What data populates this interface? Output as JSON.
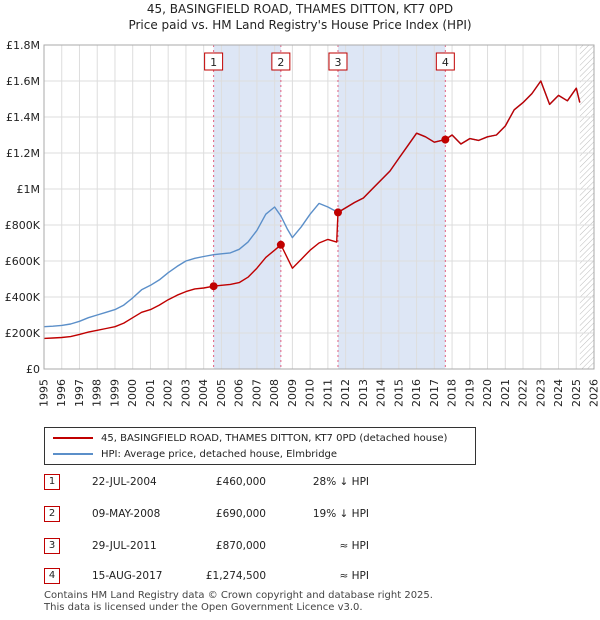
{
  "chart_data": {
    "type": "line",
    "title": "45, BASINGFIELD ROAD, THAMES DITTON, KT7 0PD",
    "subtitle": "Price paid vs. HM Land Registry's House Price Index (HPI)",
    "xlim": [
      1995,
      2026
    ],
    "ylim": [
      0,
      1800000
    ],
    "x_ticks": [
      "1995",
      "1996",
      "1997",
      "1998",
      "1999",
      "2000",
      "2001",
      "2002",
      "2003",
      "2004",
      "2005",
      "2006",
      "2007",
      "2008",
      "2009",
      "2010",
      "2011",
      "2012",
      "2013",
      "2014",
      "2015",
      "2016",
      "2017",
      "2018",
      "2019",
      "2020",
      "2021",
      "2022",
      "2023",
      "2024",
      "2025",
      "2026"
    ],
    "y_ticks": [
      {
        "value": 0,
        "label": "£0"
      },
      {
        "value": 200000,
        "label": "£200K"
      },
      {
        "value": 400000,
        "label": "£400K"
      },
      {
        "value": 600000,
        "label": "£600K"
      },
      {
        "value": 800000,
        "label": "£800K"
      },
      {
        "value": 1000000,
        "label": "£1M"
      },
      {
        "value": 1200000,
        "label": "£1.2M"
      },
      {
        "value": 1400000,
        "label": "£1.4M"
      },
      {
        "value": 1600000,
        "label": "£1.6M"
      },
      {
        "value": 1800000,
        "label": "£1.8M"
      }
    ],
    "grid": true,
    "colors": {
      "property": "#c00000",
      "hpi": "#5b8fc9",
      "shade": "#dde6f5",
      "sale_line": "#e06080"
    },
    "series": [
      {
        "name": "45, BASINGFIELD ROAD, THAMES DITTON, KT7 0PD (detached house)",
        "color": "#c00000",
        "points": [
          [
            1995.0,
            170000
          ],
          [
            1995.5,
            172000
          ],
          [
            1996.0,
            175000
          ],
          [
            1996.5,
            180000
          ],
          [
            1997.0,
            192000
          ],
          [
            1997.5,
            205000
          ],
          [
            1998.0,
            215000
          ],
          [
            1998.5,
            225000
          ],
          [
            1999.0,
            235000
          ],
          [
            1999.5,
            255000
          ],
          [
            2000.0,
            285000
          ],
          [
            2000.5,
            315000
          ],
          [
            2001.0,
            330000
          ],
          [
            2001.5,
            355000
          ],
          [
            2002.0,
            385000
          ],
          [
            2002.5,
            410000
          ],
          [
            2003.0,
            430000
          ],
          [
            2003.5,
            445000
          ],
          [
            2004.0,
            450000
          ],
          [
            2004.56,
            460000
          ],
          [
            2005.0,
            465000
          ],
          [
            2005.5,
            470000
          ],
          [
            2006.0,
            480000
          ],
          [
            2006.5,
            510000
          ],
          [
            2007.0,
            560000
          ],
          [
            2007.5,
            620000
          ],
          [
            2008.0,
            660000
          ],
          [
            2008.35,
            690000
          ],
          [
            2008.7,
            620000
          ],
          [
            2009.0,
            560000
          ],
          [
            2009.5,
            610000
          ],
          [
            2010.0,
            660000
          ],
          [
            2010.5,
            700000
          ],
          [
            2011.0,
            720000
          ],
          [
            2011.5,
            705000
          ],
          [
            2011.57,
            870000
          ],
          [
            2012.0,
            895000
          ],
          [
            2012.5,
            925000
          ],
          [
            2013.0,
            950000
          ],
          [
            2013.5,
            1000000
          ],
          [
            2014.0,
            1050000
          ],
          [
            2014.5,
            1100000
          ],
          [
            2015.0,
            1170000
          ],
          [
            2015.5,
            1240000
          ],
          [
            2016.0,
            1310000
          ],
          [
            2016.5,
            1290000
          ],
          [
            2017.0,
            1260000
          ],
          [
            2017.62,
            1274500
          ],
          [
            2018.0,
            1300000
          ],
          [
            2018.5,
            1250000
          ],
          [
            2019.0,
            1280000
          ],
          [
            2019.5,
            1270000
          ],
          [
            2020.0,
            1290000
          ],
          [
            2020.5,
            1300000
          ],
          [
            2021.0,
            1350000
          ],
          [
            2021.5,
            1440000
          ],
          [
            2022.0,
            1480000
          ],
          [
            2022.5,
            1530000
          ],
          [
            2023.0,
            1600000
          ],
          [
            2023.5,
            1470000
          ],
          [
            2024.0,
            1520000
          ],
          [
            2024.5,
            1490000
          ],
          [
            2025.0,
            1560000
          ],
          [
            2025.2,
            1480000
          ]
        ]
      },
      {
        "name": "HPI: Average price, detached house, Elmbridge",
        "color": "#5b8fc9",
        "points": [
          [
            1995.0,
            235000
          ],
          [
            1995.5,
            238000
          ],
          [
            1996.0,
            242000
          ],
          [
            1996.5,
            250000
          ],
          [
            1997.0,
            265000
          ],
          [
            1997.5,
            285000
          ],
          [
            1998.0,
            300000
          ],
          [
            1998.5,
            315000
          ],
          [
            1999.0,
            330000
          ],
          [
            1999.5,
            355000
          ],
          [
            2000.0,
            395000
          ],
          [
            2000.5,
            440000
          ],
          [
            2001.0,
            465000
          ],
          [
            2001.5,
            495000
          ],
          [
            2002.0,
            535000
          ],
          [
            2002.5,
            570000
          ],
          [
            2003.0,
            600000
          ],
          [
            2003.5,
            615000
          ],
          [
            2004.0,
            625000
          ],
          [
            2004.56,
            635000
          ],
          [
            2005.0,
            640000
          ],
          [
            2005.5,
            645000
          ],
          [
            2006.0,
            665000
          ],
          [
            2006.5,
            705000
          ],
          [
            2007.0,
            770000
          ],
          [
            2007.5,
            860000
          ],
          [
            2008.0,
            900000
          ],
          [
            2008.35,
            850000
          ],
          [
            2008.7,
            780000
          ],
          [
            2009.0,
            730000
          ],
          [
            2009.5,
            790000
          ],
          [
            2010.0,
            860000
          ],
          [
            2010.5,
            920000
          ],
          [
            2011.0,
            900000
          ],
          [
            2011.57,
            870000
          ],
          [
            2012.0,
            895000
          ],
          [
            2012.5,
            925000
          ],
          [
            2013.0,
            950000
          ],
          [
            2013.5,
            1000000
          ],
          [
            2014.0,
            1050000
          ],
          [
            2014.5,
            1100000
          ],
          [
            2015.0,
            1170000
          ],
          [
            2015.5,
            1240000
          ],
          [
            2016.0,
            1310000
          ],
          [
            2016.5,
            1290000
          ],
          [
            2017.0,
            1260000
          ],
          [
            2017.62,
            1274500
          ],
          [
            2018.0,
            1300000
          ],
          [
            2018.5,
            1250000
          ],
          [
            2019.0,
            1280000
          ],
          [
            2019.5,
            1270000
          ],
          [
            2020.0,
            1290000
          ],
          [
            2020.5,
            1300000
          ],
          [
            2021.0,
            1350000
          ],
          [
            2021.5,
            1440000
          ],
          [
            2022.0,
            1480000
          ],
          [
            2022.5,
            1530000
          ],
          [
            2023.0,
            1600000
          ],
          [
            2023.5,
            1470000
          ],
          [
            2024.0,
            1520000
          ],
          [
            2024.5,
            1490000
          ],
          [
            2025.0,
            1560000
          ],
          [
            2025.2,
            1480000
          ]
        ]
      }
    ],
    "sales": [
      {
        "id": "1",
        "x": 2004.56,
        "price": 460000,
        "date": "22-JUL-2004",
        "price_label": "£460,000",
        "delta": "28% ↓ HPI"
      },
      {
        "id": "2",
        "x": 2008.35,
        "price": 690000,
        "date": "09-MAY-2008",
        "price_label": "£690,000",
        "delta": "19% ↓ HPI"
      },
      {
        "id": "3",
        "x": 2011.57,
        "price": 870000,
        "date": "29-JUL-2011",
        "price_label": "£870,000",
        "delta": "≈ HPI"
      },
      {
        "id": "4",
        "x": 2017.62,
        "price": 1274500,
        "date": "15-AUG-2017",
        "price_label": "£1,274,500",
        "delta": "≈ HPI"
      }
    ],
    "shaded_ranges": [
      [
        2004.56,
        2008.35
      ],
      [
        2011.57,
        2017.62
      ]
    ],
    "forecast_from": 2025.2
  },
  "legend": {
    "property_label": "45, BASINGFIELD ROAD, THAMES DITTON, KT7 0PD (detached house)",
    "hpi_label": "HPI: Average price, detached house, Elmbridge"
  },
  "footer": {
    "line1": "Contains HM Land Registry data © Crown copyright and database right 2025.",
    "line2": "This data is licensed under the Open Government Licence v3.0."
  }
}
